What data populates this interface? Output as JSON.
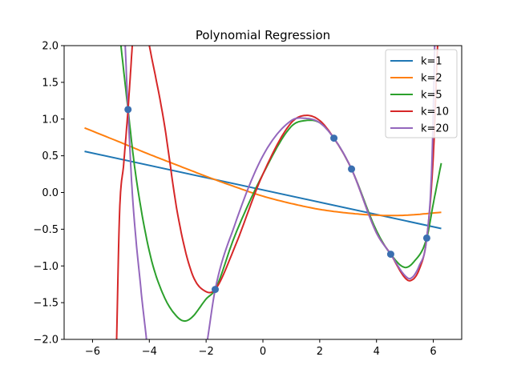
{
  "chart_data": {
    "type": "line",
    "title": "Polynomial Regression",
    "xlabel": "",
    "ylabel": "",
    "xlim": [
      -7,
      7
    ],
    "ylim": [
      -2.0,
      2.0
    ],
    "x_ticks": [
      -6,
      -4,
      -2,
      0,
      2,
      4,
      6
    ],
    "y_ticks": [
      -2.0,
      -1.5,
      -1.0,
      -0.5,
      0.0,
      0.5,
      1.0,
      1.5,
      2.0
    ],
    "x_tick_labels": [
      "−6",
      "−4",
      "−2",
      "0",
      "2",
      "4",
      "6"
    ],
    "y_tick_labels": [
      "−2.0",
      "−1.5",
      "−1.0",
      "−0.5",
      "0.0",
      "0.5",
      "1.0",
      "1.5",
      "2.0"
    ],
    "grid": false,
    "legend_position": "top-right",
    "points": {
      "color": "#3a6fb0",
      "x": [
        -4.75,
        -1.68,
        2.5,
        3.12,
        4.5,
        5.77
      ],
      "y": [
        1.13,
        -1.32,
        0.74,
        0.32,
        -0.84,
        -0.62
      ]
    },
    "series": [
      {
        "name": "k=1",
        "color": "#1f77b4",
        "x": [
          -6.28,
          6.28
        ],
        "y": [
          0.56,
          -0.49
        ]
      },
      {
        "name": "k=2",
        "color": "#ff7f0e",
        "x": [
          -6.28,
          -5.0,
          -4.0,
          -3.0,
          -2.0,
          -1.0,
          0.0,
          1.0,
          2.0,
          3.0,
          4.0,
          5.0,
          6.28
        ],
        "y": [
          0.88,
          0.68,
          0.52,
          0.37,
          0.22,
          0.08,
          -0.05,
          -0.15,
          -0.23,
          -0.28,
          -0.31,
          -0.31,
          -0.27
        ]
      },
      {
        "name": "k=5",
        "color": "#2ca02c",
        "x": [
          -5.0,
          -4.75,
          -4.5,
          -4.0,
          -3.5,
          -3.0,
          -2.75,
          -2.5,
          -2.0,
          -1.68,
          -1.0,
          0.0,
          1.0,
          1.5,
          2.0,
          2.5,
          3.12,
          4.0,
          4.5,
          5.0,
          5.3,
          5.77,
          6.0,
          6.28
        ],
        "y": [
          2.0,
          1.13,
          0.3,
          -0.8,
          -1.4,
          -1.7,
          -1.75,
          -1.7,
          -1.45,
          -1.32,
          -0.6,
          0.25,
          0.9,
          0.98,
          0.95,
          0.74,
          0.32,
          -0.52,
          -0.84,
          -1.02,
          -0.95,
          -0.62,
          -0.15,
          0.4
        ]
      },
      {
        "name": "k=10",
        "color": "#d62728",
        "x": [
          -4.0,
          -3.5,
          -3.0,
          -2.5,
          -2.0,
          -1.68,
          -1.0,
          0.0,
          1.0,
          1.5,
          2.0,
          2.5,
          3.12,
          4.0,
          4.5,
          5.0,
          5.2,
          5.5,
          5.77,
          6.0,
          6.15
        ],
        "y": [
          2.0,
          1.0,
          -0.3,
          -1.1,
          -1.35,
          -1.32,
          -0.75,
          0.25,
          0.95,
          1.05,
          0.98,
          0.74,
          0.32,
          -0.55,
          -0.84,
          -1.16,
          -1.2,
          -1.05,
          -0.62,
          0.5,
          2.0
        ]
      },
      {
        "name": "k=20",
        "color": "#9467bd",
        "x": [
          -1.95,
          -1.68,
          -1.0,
          0.0,
          1.0,
          1.5,
          2.0,
          2.5,
          3.12,
          4.0,
          4.5,
          5.0,
          5.2,
          5.5,
          5.77,
          5.95,
          6.05
        ],
        "y": [
          -2.0,
          -1.32,
          -0.45,
          0.5,
          0.98,
          1.01,
          0.95,
          0.74,
          0.32,
          -0.55,
          -0.84,
          -1.13,
          -1.17,
          -1.0,
          -0.62,
          0.4,
          2.0
        ]
      }
    ],
    "purple_left_branch": {
      "x": [
        -4.85,
        -4.75,
        -4.6,
        -4.3,
        -4.1
      ],
      "y": [
        2.0,
        1.13,
        0.0,
        -1.3,
        -2.0
      ]
    },
    "red_left_branch": {
      "x": [
        -5.15,
        -5.05,
        -4.9,
        -4.75,
        -4.6
      ],
      "y": [
        -2.0,
        -0.3,
        0.4,
        1.13,
        2.0
      ]
    }
  }
}
